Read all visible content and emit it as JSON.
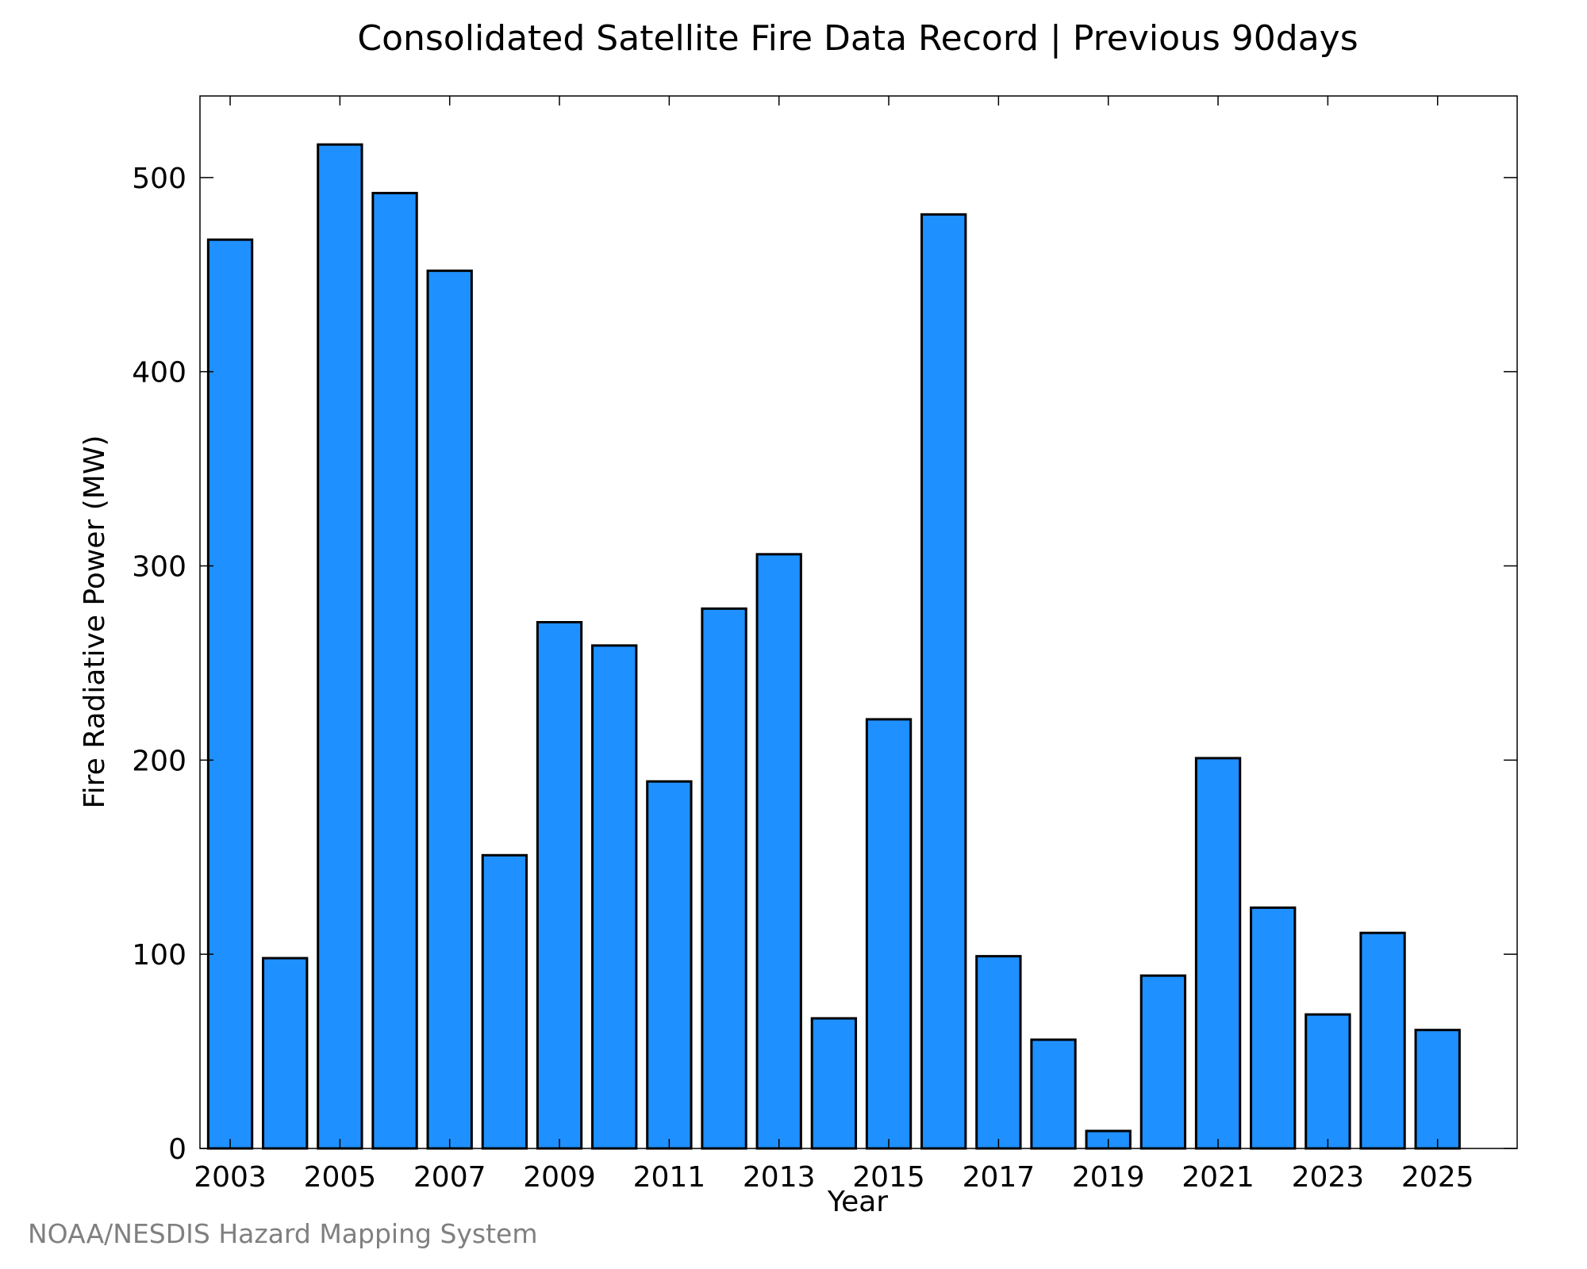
{
  "chart_data": {
    "type": "bar",
    "title": "Consolidated Satellite Fire Data Record | Previous 90days",
    "xlabel": "Year",
    "ylabel": "Fire Radiative Power (MW)",
    "x_tick_labels": [
      "2003",
      "2005",
      "2007",
      "2009",
      "2011",
      "2013",
      "2015",
      "2017",
      "2019",
      "2021",
      "2023",
      "2025"
    ],
    "y_tick_labels": [
      "0",
      "100",
      "200",
      "300",
      "400",
      "500"
    ],
    "categories": [
      "2003",
      "2004",
      "2005",
      "2006",
      "2007",
      "2008",
      "2009",
      "2010",
      "2011",
      "2012",
      "2013",
      "2014",
      "2015",
      "2016",
      "2017",
      "2018",
      "2019",
      "2020",
      "2021",
      "2022",
      "2023",
      "2024",
      "2025"
    ],
    "values": [
      468,
      98,
      517,
      492,
      452,
      151,
      271,
      259,
      189,
      278,
      306,
      67,
      221,
      481,
      99,
      56,
      9,
      89,
      201,
      124,
      69,
      111,
      61
    ],
    "ylim": [
      0,
      542
    ],
    "xlim": [
      2002.45,
      2026.45
    ],
    "grid": false,
    "bar_color": "#1e90ff",
    "edge_color": "#000000"
  },
  "credit": "NOAA/NESDIS Hazard Mapping System"
}
